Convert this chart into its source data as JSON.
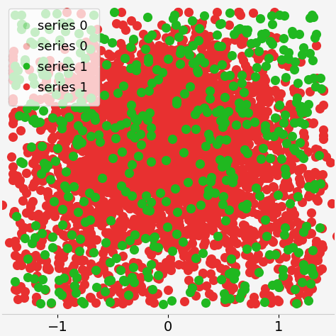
{
  "title": "",
  "xlabel": "",
  "ylabel": "",
  "xlim": [
    -1.5,
    1.5
  ],
  "ylim": [
    -0.85,
    0.75
  ],
  "xticks": [
    -1,
    0,
    1
  ],
  "n_red_main": 3000,
  "n_green_main": 500,
  "red_color": "#e83030",
  "green_color": "#20b820",
  "legend_labels": [
    "series 0",
    "series 0",
    "series 1",
    "series 1"
  ],
  "legend_marker_colors": [
    "#20b820",
    "#e83030",
    "#20b820",
    "#e83030"
  ],
  "legend_alphas": [
    0.35,
    0.35,
    1.0,
    1.0
  ],
  "bg_color": "#f5f5f5",
  "plot_bg": "#ffffff",
  "seed": 7,
  "marker_size": 90,
  "figsize": [
    4.74,
    4.74
  ],
  "dpi": 100
}
